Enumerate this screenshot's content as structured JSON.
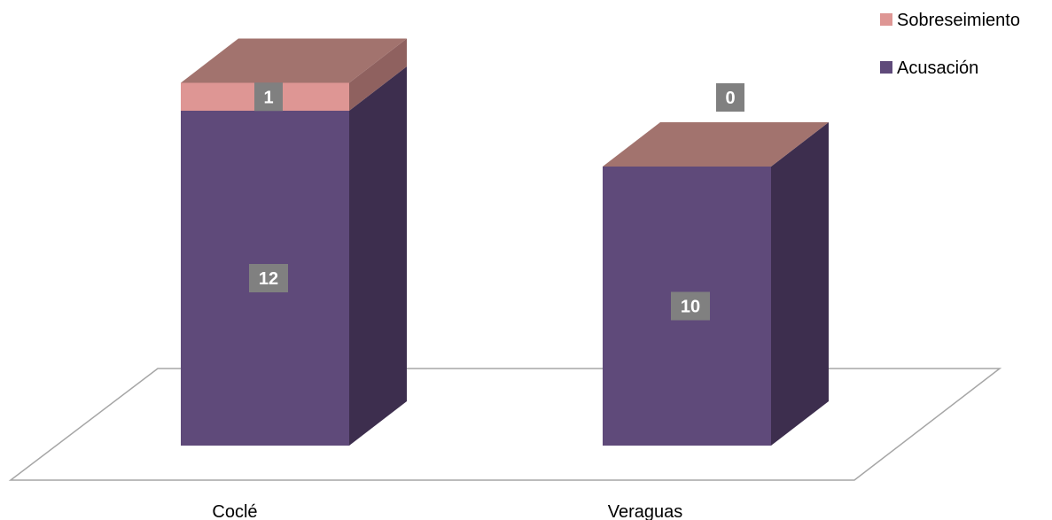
{
  "chart_data": {
    "type": "bar",
    "stacked": true,
    "style": "3d",
    "categories": [
      "Coclé",
      "Veraguas"
    ],
    "series": [
      {
        "name": "Acusación",
        "values": [
          12,
          10
        ],
        "color": "#5f4a7a",
        "side_color": "#3d2e4e",
        "top_color": "#a2736e"
      },
      {
        "name": "Sobreseimiento",
        "values": [
          1,
          0
        ],
        "color": "#de9694",
        "side_color": "#8f615f",
        "top_color": "#a2736e"
      }
    ],
    "data_label_bg": "#808080",
    "floor_color": "#a6a6a6",
    "legend": {
      "position": "top-right",
      "order": [
        "Sobreseimiento",
        "Acusación"
      ]
    },
    "title": "",
    "xlabel": "",
    "ylabel": "",
    "grid": false
  }
}
